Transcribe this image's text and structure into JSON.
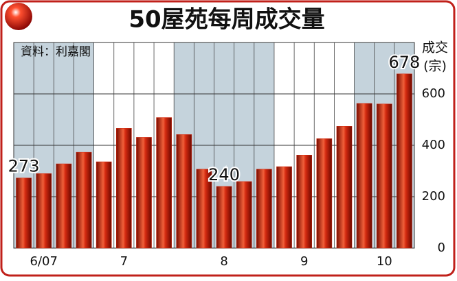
{
  "chart_data": {
    "type": "bar",
    "title": "50屋苑每周成交量",
    "source": "資料：利嘉閣",
    "ylabel": [
      "成交",
      "(宗)"
    ],
    "categories": [
      null,
      "6/07",
      null,
      null,
      null,
      "7",
      null,
      null,
      null,
      null,
      "8",
      null,
      null,
      null,
      "9",
      null,
      null,
      null,
      "10",
      null
    ],
    "values": [
      273,
      290,
      328,
      373,
      336,
      466,
      431,
      508,
      442,
      307,
      240,
      259,
      307,
      317,
      362,
      426,
      474,
      563,
      561,
      678
    ],
    "labeled_indices": [
      0,
      10,
      19
    ],
    "color": "#d42a10",
    "ylim": [
      0,
      800
    ],
    "yticks": [
      0,
      200,
      400,
      600
    ],
    "grid": true
  }
}
